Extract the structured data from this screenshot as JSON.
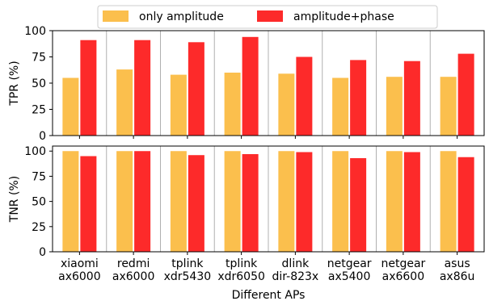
{
  "chart_data": {
    "type": "bar",
    "categories": [
      [
        "xiaomi",
        "ax6000"
      ],
      [
        "redmi",
        "ax6000"
      ],
      [
        "tplink",
        "xdr5430"
      ],
      [
        "tplink",
        "xdr6050"
      ],
      [
        "dlink",
        "dir-823x"
      ],
      [
        "netgear",
        "ax5400"
      ],
      [
        "netgear",
        "ax6600"
      ],
      [
        "asus",
        "ax86u"
      ]
    ],
    "xlabel": "Different APs",
    "legend": {
      "position": "top-center",
      "entries": [
        "only amplitude",
        "amplitude+phase"
      ]
    },
    "colors": {
      "only amplitude": "#fbbf4d",
      "amplitude+phase": "#fd2a2a"
    },
    "grid": "vertical",
    "panels": [
      {
        "ylabel": "TPR (%)",
        "ylim": [
          0,
          100
        ],
        "yticks": [
          0,
          25,
          50,
          75,
          100
        ],
        "series": [
          {
            "name": "only amplitude",
            "values": [
              55,
              63,
              58,
              60,
              59,
              55,
              56,
              56
            ]
          },
          {
            "name": "amplitude+phase",
            "values": [
              91,
              91,
              89,
              94,
              75,
              72,
              71,
              78
            ]
          }
        ]
      },
      {
        "ylabel": "TNR (%)",
        "ylim": [
          0,
          105
        ],
        "yticks": [
          0,
          25,
          50,
          75,
          100
        ],
        "series": [
          {
            "name": "only amplitude",
            "values": [
              100,
              100,
              100,
              100,
              100,
              100,
              100,
              100
            ]
          },
          {
            "name": "amplitude+phase",
            "values": [
              95,
              100,
              96,
              97,
              99,
              93,
              99,
              94
            ]
          }
        ]
      }
    ]
  }
}
